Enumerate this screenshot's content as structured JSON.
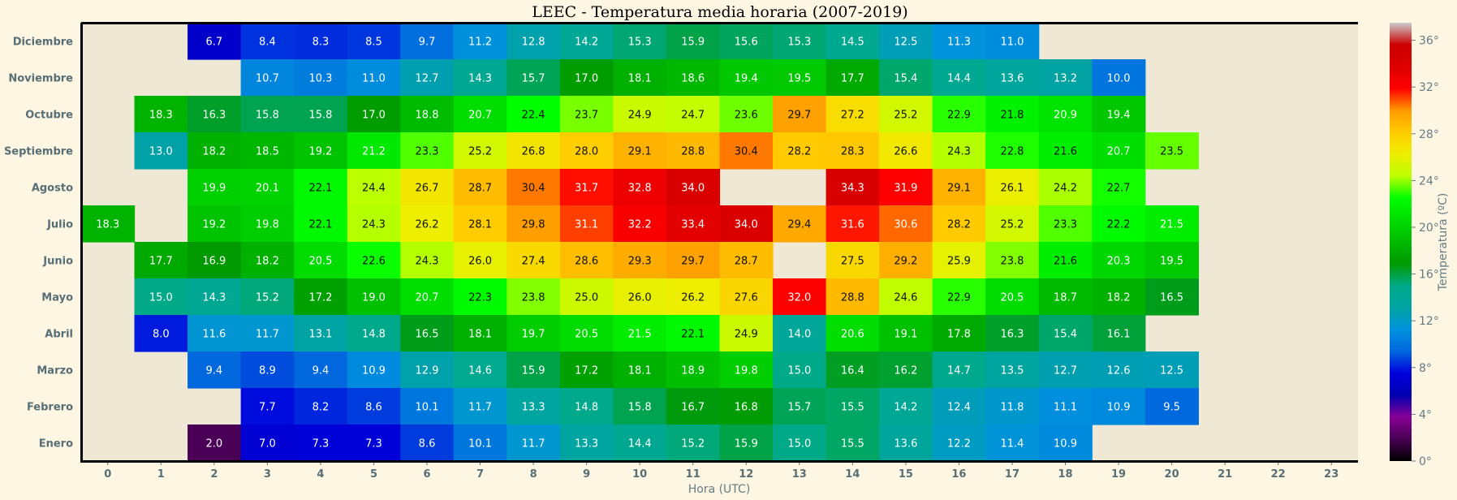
{
  "chart_data": {
    "type": "heatmap",
    "title": "LEEC - Temperatura media horaria (2007-2019)",
    "xlabel": "Hora (UTC)",
    "ylabel": "",
    "x": [
      "0",
      "1",
      "2",
      "3",
      "4",
      "5",
      "6",
      "7",
      "8",
      "9",
      "10",
      "11",
      "12",
      "13",
      "14",
      "15",
      "16",
      "17",
      "18",
      "19",
      "20",
      "21",
      "22",
      "23"
    ],
    "rows": [
      {
        "label": "Diciembre",
        "values": [
          null,
          null,
          6.7,
          8.4,
          8.3,
          8.5,
          9.7,
          11.2,
          12.8,
          14.2,
          15.3,
          15.9,
          15.6,
          15.3,
          14.5,
          12.5,
          11.3,
          11.0,
          null,
          null,
          null,
          null,
          null,
          null
        ]
      },
      {
        "label": "Noviembre",
        "values": [
          null,
          null,
          null,
          10.7,
          10.3,
          11.0,
          12.7,
          14.3,
          15.7,
          17.0,
          18.1,
          18.6,
          19.4,
          19.5,
          17.7,
          15.4,
          14.4,
          13.6,
          13.2,
          10.0,
          null,
          null,
          null,
          null
        ]
      },
      {
        "label": "Octubre",
        "values": [
          null,
          18.3,
          16.3,
          15.8,
          15.8,
          17.0,
          18.8,
          20.7,
          22.4,
          23.7,
          24.9,
          24.7,
          23.6,
          29.7,
          27.2,
          25.2,
          22.9,
          21.8,
          20.9,
          19.4,
          null,
          null,
          null,
          null
        ]
      },
      {
        "label": "Septiembre",
        "values": [
          null,
          13.0,
          18.2,
          18.5,
          19.2,
          21.2,
          23.3,
          25.2,
          26.8,
          28.0,
          29.1,
          28.8,
          30.4,
          28.2,
          28.3,
          26.6,
          24.3,
          22.8,
          21.6,
          20.7,
          23.5,
          null,
          null,
          null
        ]
      },
      {
        "label": "Agosto",
        "values": [
          null,
          null,
          19.9,
          20.1,
          22.1,
          24.4,
          26.7,
          28.7,
          30.4,
          31.7,
          32.8,
          34.0,
          null,
          null,
          34.3,
          31.9,
          29.1,
          26.1,
          24.2,
          22.7,
          null,
          null,
          null,
          null
        ]
      },
      {
        "label": "Julio",
        "values": [
          18.3,
          null,
          19.2,
          19.8,
          22.1,
          24.3,
          26.2,
          28.1,
          29.8,
          31.1,
          32.2,
          33.4,
          34.0,
          29.4,
          31.6,
          30.6,
          28.2,
          25.2,
          23.3,
          22.2,
          21.5,
          null,
          null,
          null
        ]
      },
      {
        "label": "Junio",
        "values": [
          null,
          17.7,
          16.9,
          18.2,
          20.5,
          22.6,
          24.3,
          26.0,
          27.4,
          28.6,
          29.3,
          29.7,
          28.7,
          null,
          27.5,
          29.2,
          25.9,
          23.8,
          21.6,
          20.3,
          19.5,
          null,
          null,
          null
        ]
      },
      {
        "label": "Mayo",
        "values": [
          null,
          15.0,
          14.3,
          15.2,
          17.2,
          19.0,
          20.7,
          22.3,
          23.8,
          25.0,
          26.0,
          26.2,
          27.6,
          32.0,
          28.8,
          24.6,
          22.9,
          20.5,
          18.7,
          18.2,
          16.5,
          null,
          null,
          null
        ]
      },
      {
        "label": "Abril",
        "values": [
          null,
          8.0,
          11.6,
          11.7,
          13.1,
          14.8,
          16.5,
          18.1,
          19.7,
          20.5,
          21.5,
          22.1,
          24.9,
          14.0,
          20.6,
          19.1,
          17.8,
          16.3,
          15.4,
          16.1,
          null,
          null,
          null,
          null
        ]
      },
      {
        "label": "Marzo",
        "values": [
          null,
          null,
          9.4,
          8.9,
          9.4,
          10.9,
          12.9,
          14.6,
          15.9,
          17.2,
          18.1,
          18.9,
          19.8,
          15.0,
          16.4,
          16.2,
          14.7,
          13.5,
          12.7,
          12.6,
          12.5,
          null,
          null,
          null
        ]
      },
      {
        "label": "Febrero",
        "values": [
          null,
          null,
          null,
          7.7,
          8.2,
          8.6,
          10.1,
          11.7,
          13.3,
          14.8,
          15.8,
          16.7,
          16.8,
          15.7,
          15.5,
          14.2,
          12.4,
          11.8,
          11.1,
          10.9,
          9.5,
          null,
          null,
          null
        ]
      },
      {
        "label": "Enero",
        "values": [
          null,
          null,
          2.0,
          7.0,
          7.3,
          7.3,
          8.6,
          10.1,
          11.7,
          13.3,
          14.4,
          15.2,
          15.9,
          15.0,
          15.5,
          13.6,
          12.2,
          11.4,
          10.9,
          null,
          null,
          null,
          null,
          null
        ]
      }
    ],
    "colorbar": {
      "label": "Temperatura (ºC)",
      "range": [
        0,
        37.5
      ],
      "ticks": [
        0,
        4,
        8,
        12,
        16,
        20,
        24,
        28,
        32,
        36
      ],
      "tick_labels": [
        "0°",
        "4°",
        "8°",
        "12°",
        "16°",
        "20°",
        "24°",
        "28°",
        "32°",
        "36°"
      ],
      "colormap": "nipy_spectral"
    }
  }
}
